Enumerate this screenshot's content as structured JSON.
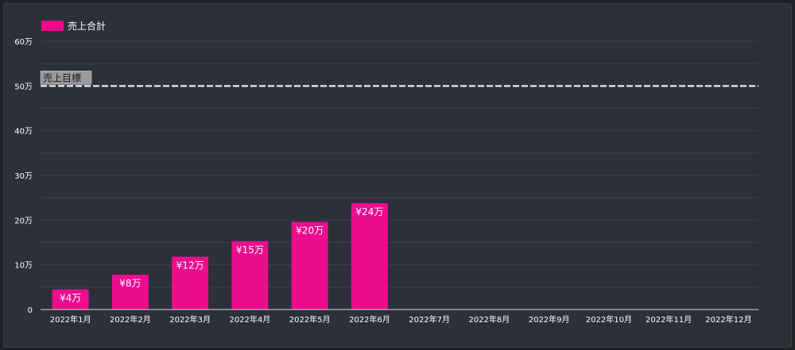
{
  "chart_data": {
    "type": "bar",
    "legend": {
      "label": "売上合計",
      "color": "#ec0d8f",
      "position": "top-left"
    },
    "categories": [
      "2022年1月",
      "2022年2月",
      "2022年3月",
      "2022年4月",
      "2022年5月",
      "2022年6月",
      "2022年7月",
      "2022年8月",
      "2022年9月",
      "2022年10月",
      "2022年11月",
      "2022年12月"
    ],
    "series": [
      {
        "name": "売上合計",
        "values": [
          45000,
          78000,
          118000,
          153000,
          196000,
          238000,
          null,
          null,
          null,
          null,
          null,
          null
        ]
      }
    ],
    "data_labels": [
      "¥4万",
      "¥8万",
      "¥12万",
      "¥15万",
      "¥20万",
      "¥24万",
      "",
      "",
      "",
      "",
      "",
      ""
    ],
    "ylim": [
      0,
      600000
    ],
    "yticks": [
      0,
      100000,
      200000,
      300000,
      400000,
      500000,
      600000
    ],
    "ytick_labels": [
      "0",
      "10万",
      "20万",
      "30万",
      "40万",
      "50万",
      "60万"
    ],
    "target_line": {
      "value": 500000,
      "label": "売上目標",
      "style": "dashed",
      "color": "#ffffff"
    },
    "grid": true,
    "bar_color": "#ec0d8f",
    "background": "#2d3038"
  }
}
